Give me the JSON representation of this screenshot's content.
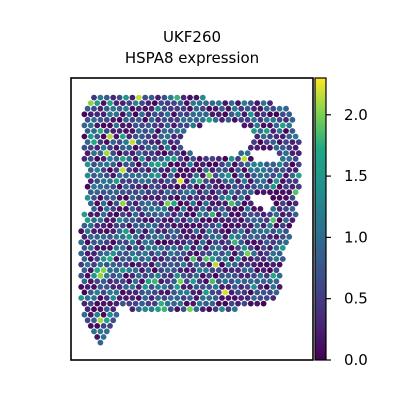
{
  "chart_data": {
    "type": "heatmap",
    "title": "UKF260",
    "subtitle": "HSPA8 expression",
    "xlabel": "",
    "ylabel": "",
    "grid": false,
    "colorbar": {
      "colormap": "viridis",
      "range": [
        0.0,
        2.3
      ],
      "ticks": [
        0.0,
        0.5,
        1.0,
        1.5,
        2.0
      ],
      "tick_labels": [
        "0.0",
        "0.5",
        "1.0",
        "1.5",
        "2.0"
      ]
    },
    "spots": {
      "description_of_values": "per-spot HSPA8 expression, mostly 0.0–1.4 with sparse highs near 2.2",
      "min": 0.0,
      "max": 2.3
    }
  }
}
